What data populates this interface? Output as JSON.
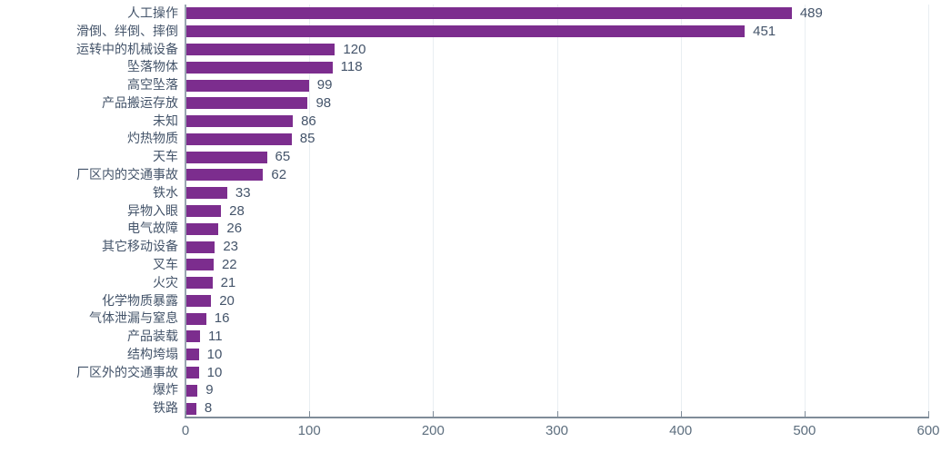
{
  "chart_data": {
    "type": "bar",
    "orientation": "horizontal",
    "title": "",
    "categories": [
      "人工操作",
      "滑倒、绊倒、摔倒",
      "运转中的机械设备",
      "坠落物体",
      "高空坠落",
      "产品搬运存放",
      "未知",
      "灼热物质",
      "天车",
      "厂区内的交通事故",
      "铁水",
      "异物入眼",
      "电气故障",
      "其它移动设备",
      "叉车",
      "火灾",
      "化学物质暴露",
      "气体泄漏与窒息",
      "产品装载",
      "结构垮塌",
      "厂区外的交通事故",
      "爆炸",
      "铁路"
    ],
    "values": [
      489,
      451,
      120,
      118,
      99,
      98,
      86,
      85,
      65,
      62,
      33,
      28,
      26,
      23,
      22,
      21,
      20,
      16,
      11,
      10,
      10,
      9,
      8
    ],
    "xlabel": "",
    "ylabel": "",
    "xlim": [
      0,
      600
    ],
    "xticks": [
      0,
      100,
      200,
      300,
      400,
      500,
      600
    ],
    "grid": true,
    "legend": false,
    "value_labels": true
  },
  "style": {
    "bar_color": "#7c2d8e",
    "category_label_color": "#44546a",
    "value_label_color": "#44546a",
    "tick_label_color": "#5d6e7e",
    "axis_line_color": "#7f8c99",
    "gridline_color": "#e9eef2",
    "background_color": "#ffffff"
  }
}
